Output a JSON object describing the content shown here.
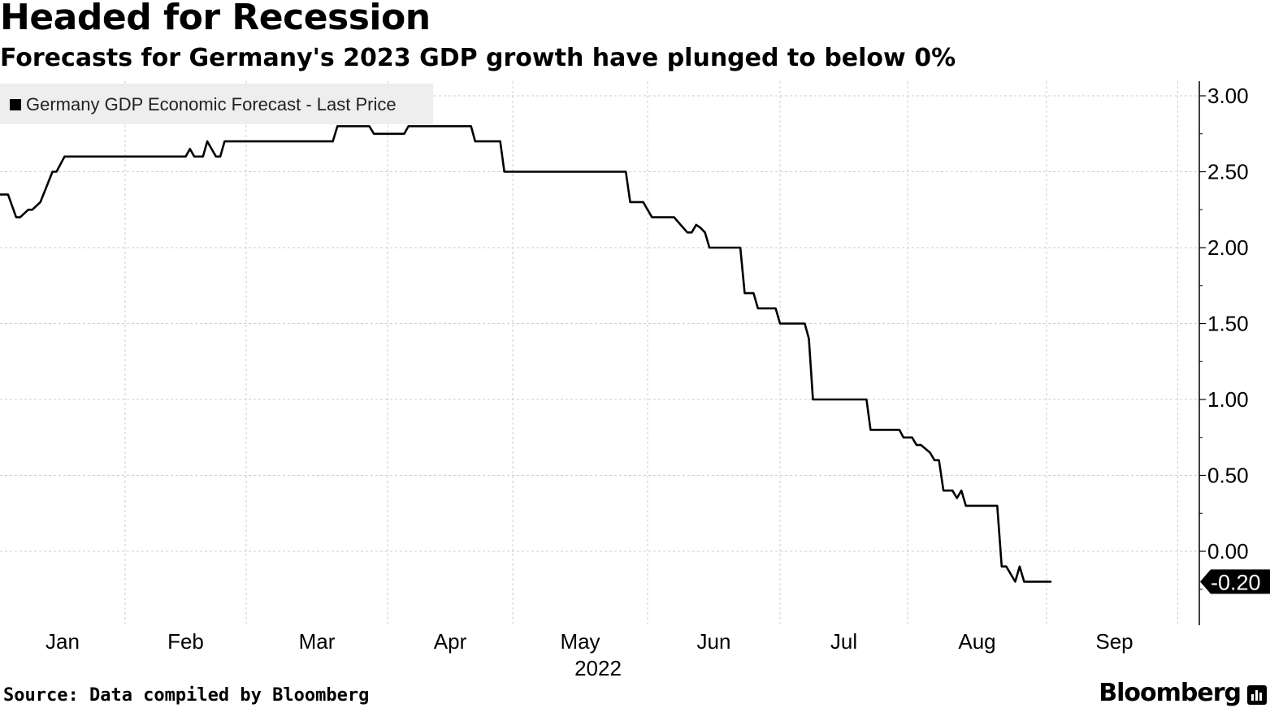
{
  "header": {
    "title": "Headed for Recession",
    "subtitle": "Forecasts for Germany's 2023 GDP growth have plunged to below 0%"
  },
  "footer": {
    "source": "Source: Data compiled by Bloomberg",
    "brand": "Bloomberg"
  },
  "colors": {
    "line": "#000000",
    "grid": "#cccccc",
    "legend_bg": "#eeeeee",
    "background": "#ffffff"
  },
  "chart_data": {
    "type": "line",
    "title": "Headed for Recession",
    "subtitle": "Forecasts for Germany's 2023 GDP growth have plunged to below 0%",
    "legend": {
      "position": "top-left",
      "entries": [
        "Germany GDP Economic Forecast - Last Price"
      ]
    },
    "x_axis": {
      "type": "date",
      "year_label": "2022",
      "range": [
        "2022-01-01",
        "2022-09-30"
      ],
      "ticks": [
        {
          "date": "2022-01-01",
          "label": "Jan"
        },
        {
          "date": "2022-02-01",
          "label": "Feb"
        },
        {
          "date": "2022-03-01",
          "label": "Mar"
        },
        {
          "date": "2022-04-01",
          "label": "Apr"
        },
        {
          "date": "2022-05-01",
          "label": "May"
        },
        {
          "date": "2022-06-01",
          "label": "Jun"
        },
        {
          "date": "2022-07-01",
          "label": "Jul"
        },
        {
          "date": "2022-08-01",
          "label": "Aug"
        },
        {
          "date": "2022-09-01",
          "label": "Sep"
        }
      ]
    },
    "y_axis": {
      "position": "right",
      "ylim": [
        -0.49,
        3.1
      ],
      "ticks": [
        {
          "value": 3.0,
          "label": "3.00"
        },
        {
          "value": 2.5,
          "label": "2.50"
        },
        {
          "value": 2.0,
          "label": "2.00"
        },
        {
          "value": 1.5,
          "label": "1.50"
        },
        {
          "value": 1.0,
          "label": "1.00"
        },
        {
          "value": 0.5,
          "label": "0.50"
        },
        {
          "value": 0.0,
          "label": "0.00"
        }
      ]
    },
    "grid": true,
    "last_value_label": "-0.20",
    "series": [
      {
        "name": "Germany GDP Economic Forecast - Last Price",
        "points": [
          [
            "2021-12-20",
            2.35
          ],
          [
            "2022-01-03",
            2.35
          ],
          [
            "2022-01-05",
            2.2
          ],
          [
            "2022-01-06",
            2.2
          ],
          [
            "2022-01-08",
            2.25
          ],
          [
            "2022-01-09",
            2.25
          ],
          [
            "2022-01-11",
            2.3
          ],
          [
            "2022-01-14",
            2.5
          ],
          [
            "2022-01-15",
            2.5
          ],
          [
            "2022-01-17",
            2.6
          ],
          [
            "2022-02-15",
            2.6
          ],
          [
            "2022-02-16",
            2.65
          ],
          [
            "2022-02-17",
            2.6
          ],
          [
            "2022-02-19",
            2.6
          ],
          [
            "2022-02-20",
            2.7
          ],
          [
            "2022-02-22",
            2.6
          ],
          [
            "2022-02-23",
            2.6
          ],
          [
            "2022-02-24",
            2.7
          ],
          [
            "2022-03-20",
            2.7
          ],
          [
            "2022-03-21",
            2.8
          ],
          [
            "2022-03-28",
            2.8
          ],
          [
            "2022-03-29",
            2.75
          ],
          [
            "2022-04-05",
            2.75
          ],
          [
            "2022-04-06",
            2.8
          ],
          [
            "2022-04-21",
            2.8
          ],
          [
            "2022-04-22",
            2.7
          ],
          [
            "2022-04-28",
            2.7
          ],
          [
            "2022-04-29",
            2.5
          ],
          [
            "2022-05-27",
            2.5
          ],
          [
            "2022-05-28",
            2.3
          ],
          [
            "2022-05-31",
            2.3
          ],
          [
            "2022-06-01",
            2.25
          ],
          [
            "2022-06-02",
            2.2
          ],
          [
            "2022-06-07",
            2.2
          ],
          [
            "2022-06-10",
            2.1
          ],
          [
            "2022-06-11",
            2.1
          ],
          [
            "2022-06-12",
            2.15
          ],
          [
            "2022-06-13",
            2.13
          ],
          [
            "2022-06-14",
            2.1
          ],
          [
            "2022-06-15",
            2.0
          ],
          [
            "2022-06-22",
            2.0
          ],
          [
            "2022-06-23",
            1.7
          ],
          [
            "2022-06-25",
            1.7
          ],
          [
            "2022-06-26",
            1.6
          ],
          [
            "2022-06-30",
            1.6
          ],
          [
            "2022-07-01",
            1.5
          ],
          [
            "2022-07-07",
            1.5
          ],
          [
            "2022-07-08",
            1.4
          ],
          [
            "2022-07-09",
            1.0
          ],
          [
            "2022-07-22",
            1.0
          ],
          [
            "2022-07-23",
            0.8
          ],
          [
            "2022-07-30",
            0.8
          ],
          [
            "2022-07-31",
            0.75
          ],
          [
            "2022-08-02",
            0.75
          ],
          [
            "2022-08-03",
            0.7
          ],
          [
            "2022-08-04",
            0.7
          ],
          [
            "2022-08-06",
            0.65
          ],
          [
            "2022-08-07",
            0.6
          ],
          [
            "2022-08-08",
            0.6
          ],
          [
            "2022-08-09",
            0.4
          ],
          [
            "2022-08-11",
            0.4
          ],
          [
            "2022-08-12",
            0.35
          ],
          [
            "2022-08-13",
            0.4
          ],
          [
            "2022-08-14",
            0.3
          ],
          [
            "2022-08-21",
            0.3
          ],
          [
            "2022-08-22",
            -0.1
          ],
          [
            "2022-08-23",
            -0.1
          ],
          [
            "2022-08-25",
            -0.2
          ],
          [
            "2022-08-26",
            -0.1
          ],
          [
            "2022-08-27",
            -0.2
          ],
          [
            "2022-09-02",
            -0.2
          ]
        ]
      }
    ]
  }
}
